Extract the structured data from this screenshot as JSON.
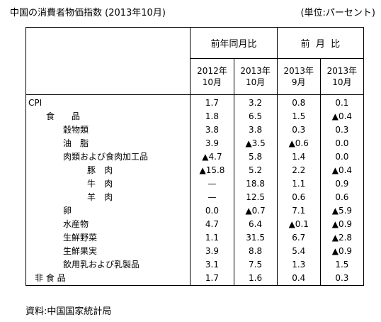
{
  "title": "中国の消費者物価指数 (2013年10月)",
  "unit": "(単位:パーセント)",
  "header": {
    "group_yoy": "前年同月比",
    "group_mom": "前  月  比",
    "yoy_col1": [
      "2012年",
      "10月"
    ],
    "yoy_col2": [
      "2013年",
      "10月"
    ],
    "mom_col1": [
      "2013年",
      "9月"
    ],
    "mom_col2": [
      "2013年",
      "10月"
    ]
  },
  "triangle_symbol": "▲",
  "rows": [
    {
      "label": "CPI",
      "indent": 0,
      "values": [
        {
          "t": "1.7"
        },
        {
          "t": "3.2"
        },
        {
          "t": "0.8"
        },
        {
          "t": "0.1"
        }
      ]
    },
    {
      "label": "食　　品",
      "indent": 1,
      "values": [
        {
          "t": "1.8"
        },
        {
          "t": "6.5"
        },
        {
          "t": "1.5"
        },
        {
          "t": "▲0.4"
        }
      ]
    },
    {
      "label": "穀物類",
      "indent": 2,
      "values": [
        {
          "t": "3.8"
        },
        {
          "t": "3.8"
        },
        {
          "t": "0.3"
        },
        {
          "t": "0.3"
        }
      ]
    },
    {
      "label": "油　脂",
      "indent": 2,
      "values": [
        {
          "t": "3.9"
        },
        {
          "t": "▲3.5"
        },
        {
          "t": "▲0.6"
        },
        {
          "t": "0.0"
        }
      ]
    },
    {
      "label": "肉類および食肉加工品",
      "indent": 2,
      "values": [
        {
          "t": "▲4.7"
        },
        {
          "t": "5.8"
        },
        {
          "t": "1.4"
        },
        {
          "t": "0.0"
        }
      ]
    },
    {
      "label": "豚　肉",
      "indent": 3,
      "values": [
        {
          "t": "▲15.8"
        },
        {
          "t": "5.2"
        },
        {
          "t": "2.2"
        },
        {
          "t": "▲0.4"
        }
      ]
    },
    {
      "label": "牛　肉",
      "indent": 3,
      "values": [
        {
          "t": "—"
        },
        {
          "t": "18.8"
        },
        {
          "t": "1.1"
        },
        {
          "t": "0.9"
        }
      ]
    },
    {
      "label": "羊　肉",
      "indent": 3,
      "values": [
        {
          "t": "—"
        },
        {
          "t": "12.5"
        },
        {
          "t": "0.6"
        },
        {
          "t": "0.6"
        }
      ]
    },
    {
      "label": "卵",
      "indent": 2,
      "values": [
        {
          "t": "0.0"
        },
        {
          "t": "▲0.7"
        },
        {
          "t": "7.1"
        },
        {
          "t": "▲5.9"
        }
      ]
    },
    {
      "label": "水産物",
      "indent": 2,
      "values": [
        {
          "t": "4.7"
        },
        {
          "t": "6.4"
        },
        {
          "t": "▲0.1"
        },
        {
          "t": "▲0.9"
        }
      ]
    },
    {
      "label": "生鮮野菜",
      "indent": 2,
      "values": [
        {
          "t": "1.1"
        },
        {
          "t": "31.5"
        },
        {
          "t": "6.7"
        },
        {
          "t": "▲2.8"
        }
      ]
    },
    {
      "label": "生鮮果実",
      "indent": 2,
      "values": [
        {
          "t": "3.9"
        },
        {
          "t": "8.8"
        },
        {
          "t": "5.4"
        },
        {
          "t": "▲0.9"
        }
      ]
    },
    {
      "label": "飲用乳および乳製品",
      "indent": 2,
      "values": [
        {
          "t": "3.1"
        },
        {
          "t": "7.5"
        },
        {
          "t": "1.3"
        },
        {
          "t": "1.5"
        }
      ]
    },
    {
      "label": "非  食  品",
      "indent": 4,
      "values": [
        {
          "t": "1.7"
        },
        {
          "t": "1.6"
        },
        {
          "t": "0.4"
        },
        {
          "t": "0.3"
        }
      ]
    }
  ],
  "source": "資料:中国国家統計局"
}
